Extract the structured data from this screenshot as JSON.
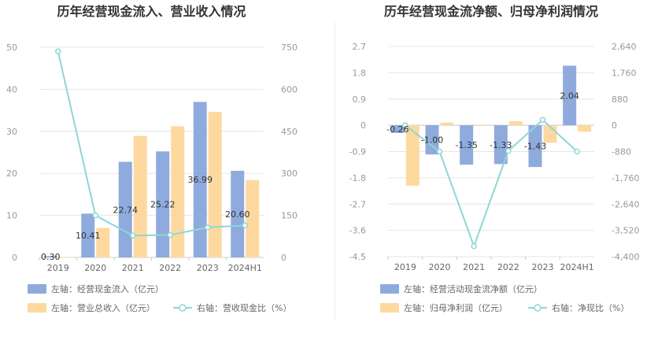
{
  "colors": {
    "bar_primary": "#8faadc",
    "bar_secondary": "#fdd9a0",
    "line": "#8fd6d6",
    "grid": "#e6e6e6",
    "axis_text": "#999999"
  },
  "chart_data": [
    {
      "type": "bar",
      "title": "历年经营现金流入、营业收入情况",
      "categories": [
        "2019",
        "2020",
        "2021",
        "2022",
        "2023",
        "2024H1"
      ],
      "left_axis": {
        "min": 0,
        "max": 50,
        "ticks": [
          0,
          10,
          20,
          30,
          40,
          50
        ]
      },
      "right_axis": {
        "min": 0,
        "max": 750,
        "ticks": [
          0,
          150,
          300,
          450,
          600,
          750
        ]
      },
      "series": [
        {
          "name": "左轴：经营现金流入（亿元）",
          "kind": "bar",
          "axis": "left",
          "values": [
            0.3,
            10.41,
            22.74,
            25.22,
            36.99,
            20.6
          ],
          "labels": [
            "0.30",
            "10.41",
            "22.74",
            "25.22",
            "36.99",
            "20.60"
          ]
        },
        {
          "name": "左轴：营业总收入（亿元）",
          "kind": "bar",
          "axis": "left",
          "values": [
            0.1,
            7.0,
            28.9,
            31.2,
            34.6,
            18.4
          ]
        },
        {
          "name": "右轴：营收现金比（%）",
          "kind": "line",
          "axis": "right",
          "values": [
            735,
            150,
            78,
            80,
            107,
            114
          ]
        }
      ]
    },
    {
      "type": "bar",
      "title": "历年经营现金流净额、归母净利润情况",
      "categories": [
        "2019",
        "2020",
        "2021",
        "2022",
        "2023",
        "2024H1"
      ],
      "left_axis": {
        "min": -4.5,
        "max": 2.7,
        "ticks": [
          -4.5,
          -3.6,
          -2.7,
          -1.8,
          -0.9,
          0,
          0.9,
          1.8,
          2.7
        ],
        "tick_labels": [
          "-4.5",
          "-3.6",
          "-2.7",
          "-1.8",
          "-0.9",
          "0",
          "0.9",
          "1.8",
          "2.7"
        ]
      },
      "right_axis": {
        "min": -4400,
        "max": 2640,
        "ticks": [
          -4400,
          -3520,
          -2640,
          -1760,
          -880,
          0,
          880,
          1760,
          2640
        ],
        "tick_labels": [
          "-4,400",
          "-3,520",
          "-2,640",
          "-1,760",
          "-880",
          "0",
          "880",
          "1,760",
          "2,640"
        ]
      },
      "series": [
        {
          "name": "左轴：经营活动现金流净额（亿元）",
          "kind": "bar",
          "axis": "left",
          "values": [
            -0.26,
            -1.0,
            -1.35,
            -1.33,
            -1.43,
            2.04
          ],
          "labels": [
            "-0.26",
            "-1.00",
            "-1.35",
            "-1.33",
            "-1.43",
            "2.04"
          ]
        },
        {
          "name": "左轴：归母净利润（亿元）",
          "kind": "bar",
          "axis": "left",
          "values": [
            -2.07,
            0.09,
            -0.02,
            0.14,
            -0.6,
            -0.22
          ]
        },
        {
          "name": "右轴：净现比（%）",
          "kind": "line",
          "axis": "right",
          "values": [
            0,
            -880,
            -4050,
            -860,
            180,
            -880
          ]
        }
      ]
    }
  ]
}
